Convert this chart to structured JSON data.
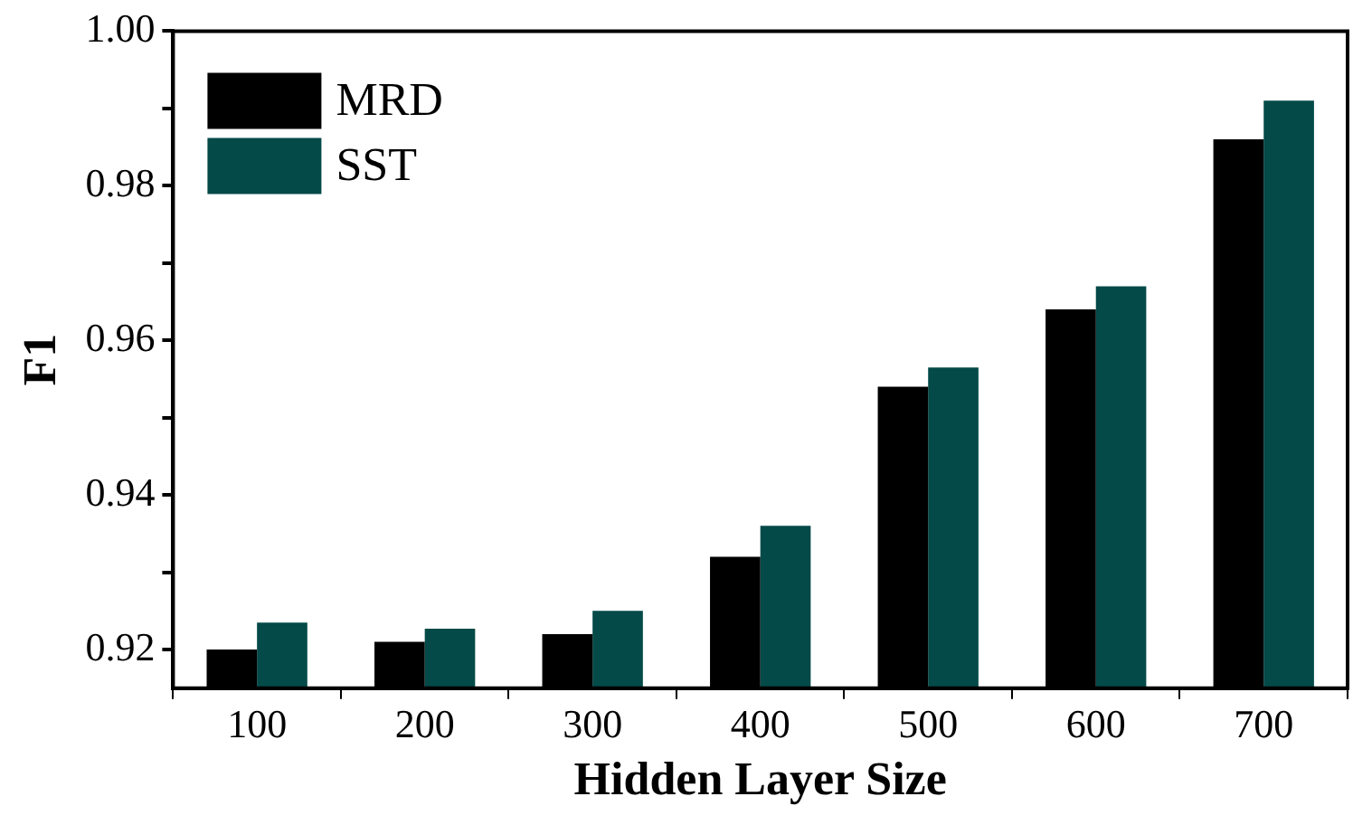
{
  "chart_data": {
    "type": "bar",
    "xlabel": "Hidden Layer Size",
    "ylabel": "F1",
    "categories": [
      "100",
      "200",
      "300",
      "400",
      "500",
      "600",
      "700"
    ],
    "series": [
      {
        "name": "MRD",
        "color": "#000000",
        "values": [
          0.92,
          0.921,
          0.922,
          0.932,
          0.954,
          0.964,
          0.986
        ]
      },
      {
        "name": "SST",
        "color": "#034a48",
        "values": [
          0.9235,
          0.9227,
          0.925,
          0.936,
          0.9565,
          0.967,
          0.991
        ]
      }
    ],
    "ylim": [
      0.915,
      1.0
    ],
    "yticks": [
      {
        "value": 0.92,
        "label": "0.92"
      },
      {
        "value": 0.93,
        "label": null
      },
      {
        "value": 0.94,
        "label": "0.94"
      },
      {
        "value": 0.95,
        "label": null
      },
      {
        "value": 0.96,
        "label": "0.96"
      },
      {
        "value": 0.97,
        "label": null
      },
      {
        "value": 0.98,
        "label": "0.98"
      },
      {
        "value": 0.99,
        "label": null
      },
      {
        "value": 1.0,
        "label": "1.00"
      }
    ],
    "grid": false,
    "legend": "top left"
  }
}
